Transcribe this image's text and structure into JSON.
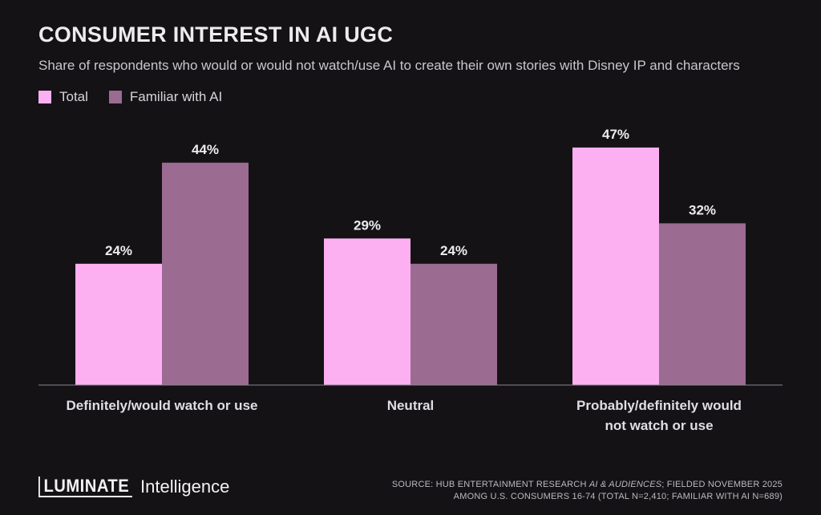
{
  "header": {
    "title": "CONSUMER INTEREST IN AI UGC",
    "subtitle": "Share of respondents who would or would not watch/use AI to create their own stories with Disney IP and characters"
  },
  "legend": {
    "items": [
      {
        "label": "Total",
        "color": "#fcb0f2"
      },
      {
        "label": "Familiar with AI",
        "color": "#9b6b92"
      }
    ]
  },
  "chart_data": {
    "type": "bar",
    "title": "CONSUMER INTEREST IN AI UGC",
    "subtitle": "Share of respondents who would or would not watch/use AI to create their own stories with Disney IP and characters",
    "categories": [
      [
        "Definitely/would watch or use"
      ],
      [
        "Neutral"
      ],
      [
        "Probably/definitely would",
        "not watch or use"
      ]
    ],
    "series": [
      {
        "name": "Total",
        "values": [
          24,
          29,
          47
        ],
        "labels": [
          "24%",
          "29%",
          "47%"
        ],
        "color": "#fcb0f2"
      },
      {
        "name": "Familiar with AI",
        "values": [
          44,
          24,
          32
        ],
        "labels": [
          "44%",
          "24%",
          "32%"
        ],
        "color": "#9b6b92"
      }
    ],
    "ylim": [
      0,
      50
    ],
    "grid": false,
    "legend_position": "top-left",
    "xlabel": "",
    "ylabel": ""
  },
  "footer": {
    "brand": "LUMINATE",
    "brand_sub": "Intelligence",
    "source_line1_a": "SOURCE: HUB ENTERTAINMENT RESEARCH ",
    "source_line1_em": "AI & AUDIENCES",
    "source_line1_b": "; FIELDED NOVEMBER 2025",
    "source_line2": "AMONG U.S. CONSUMERS 16-74 (TOTAL N=2,410; FAMILIAR WITH AI N=689)"
  }
}
